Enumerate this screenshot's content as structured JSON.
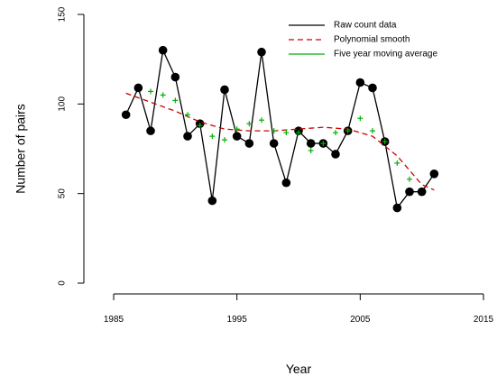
{
  "chart_data": {
    "type": "line",
    "title": "",
    "xlabel": "Year",
    "ylabel": "Number of pairs",
    "xlim": [
      1985,
      2015
    ],
    "ylim": [
      0,
      150
    ],
    "x_ticks": [
      "1985",
      "1995",
      "2005",
      "2015"
    ],
    "y_ticks": [
      "0",
      "50",
      "100",
      "150"
    ],
    "grid": false,
    "legend_position": "top-right",
    "series": [
      {
        "name": "Raw count data",
        "style": "line+points",
        "color": "#000000",
        "x": [
          1986,
          1987,
          1988,
          1989,
          1990,
          1991,
          1992,
          1993,
          1994,
          1995,
          1996,
          1997,
          1998,
          1999,
          2000,
          2001,
          2002,
          2003,
          2004,
          2005,
          2006,
          2007,
          2008,
          2009,
          2010,
          2011
        ],
        "y": [
          94,
          109,
          85,
          130,
          115,
          82,
          89,
          46,
          108,
          82,
          78,
          129,
          78,
          56,
          85,
          78,
          78,
          72,
          85,
          112,
          109,
          79,
          42,
          51,
          51,
          61
        ]
      },
      {
        "name": "Polynomial smooth",
        "style": "dashed",
        "color": "#cc0000",
        "x": [
          1986,
          1988,
          1990,
          1992,
          1994,
          1996,
          1998,
          2000,
          2002,
          2004,
          2006,
          2008,
          2010,
          2011
        ],
        "y": [
          106,
          101,
          96,
          90,
          86,
          85,
          85,
          86,
          87,
          86,
          82,
          71,
          55,
          52
        ]
      },
      {
        "name": "Five year moving average",
        "style": "crosses",
        "color": "#00b000",
        "x": [
          1988,
          1989,
          1990,
          1991,
          1992,
          1993,
          1994,
          1995,
          1996,
          1997,
          1998,
          1999,
          2000,
          2001,
          2002,
          2003,
          2004,
          2005,
          2006,
          2007,
          2008,
          2009
        ],
        "y": [
          107,
          105,
          102,
          94,
          88,
          82,
          80,
          86,
          89,
          91,
          85,
          84,
          84,
          74,
          78,
          84,
          85,
          92,
          85,
          79,
          67,
          58
        ]
      }
    ]
  }
}
